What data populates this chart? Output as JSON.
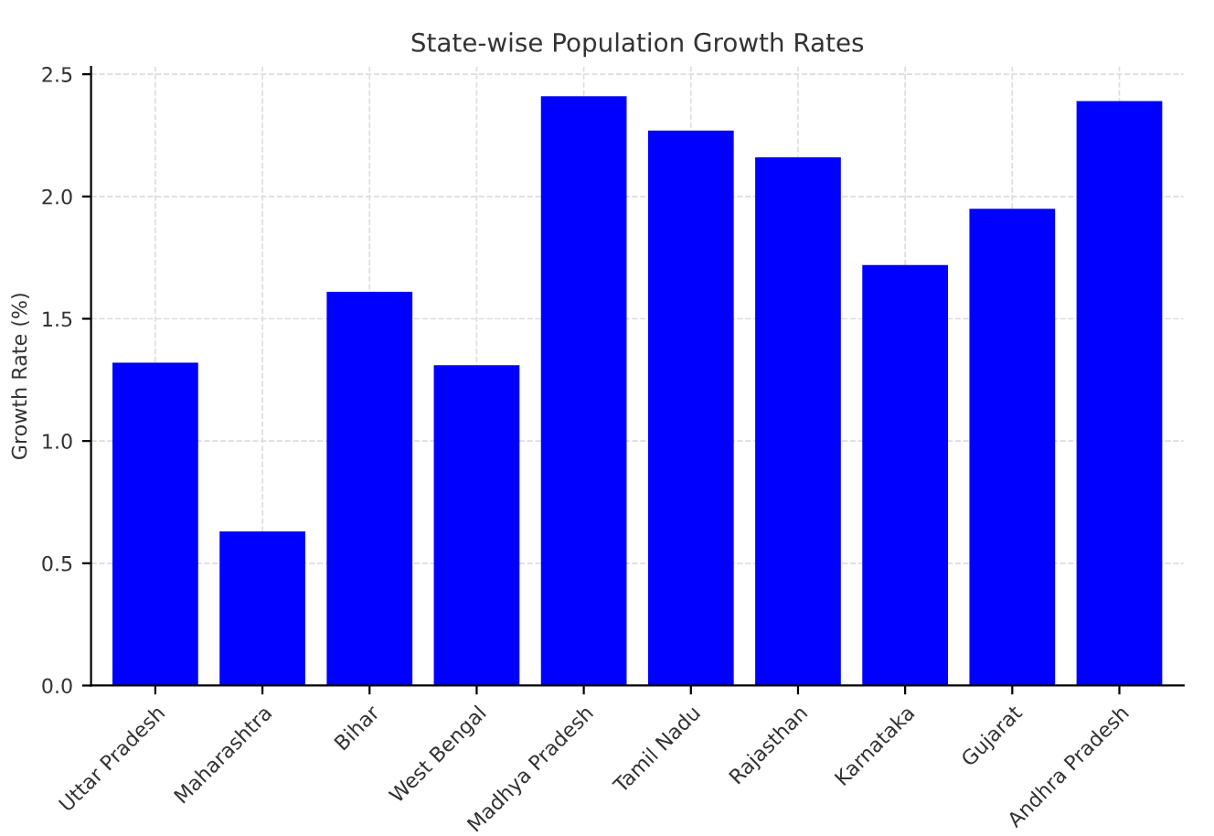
{
  "chart_data": {
    "type": "bar",
    "title": "State-wise Population Growth Rates",
    "ylabel": "Growth Rate (%)",
    "categories": [
      "Uttar Pradesh",
      "Maharashtra",
      "Bihar",
      "West Bengal",
      "Madhya Pradesh",
      "Tamil Nadu",
      "Rajasthan",
      "Karnataka",
      "Gujarat",
      "Andhra Pradesh"
    ],
    "values": [
      1.32,
      0.63,
      1.61,
      1.31,
      2.41,
      2.27,
      2.16,
      1.72,
      1.95,
      2.39
    ],
    "color": "#0000ff",
    "ylim": [
      0,
      2.53
    ],
    "yticks": [
      {
        "value": 0,
        "label": "0.0"
      },
      {
        "value": 0.5,
        "label": "0.5"
      },
      {
        "value": 1,
        "label": "1.0"
      },
      {
        "value": 1.5,
        "label": "1.5"
      },
      {
        "value": 2,
        "label": "2.0"
      },
      {
        "value": 2.5,
        "label": "2.5"
      }
    ],
    "grid": true
  }
}
